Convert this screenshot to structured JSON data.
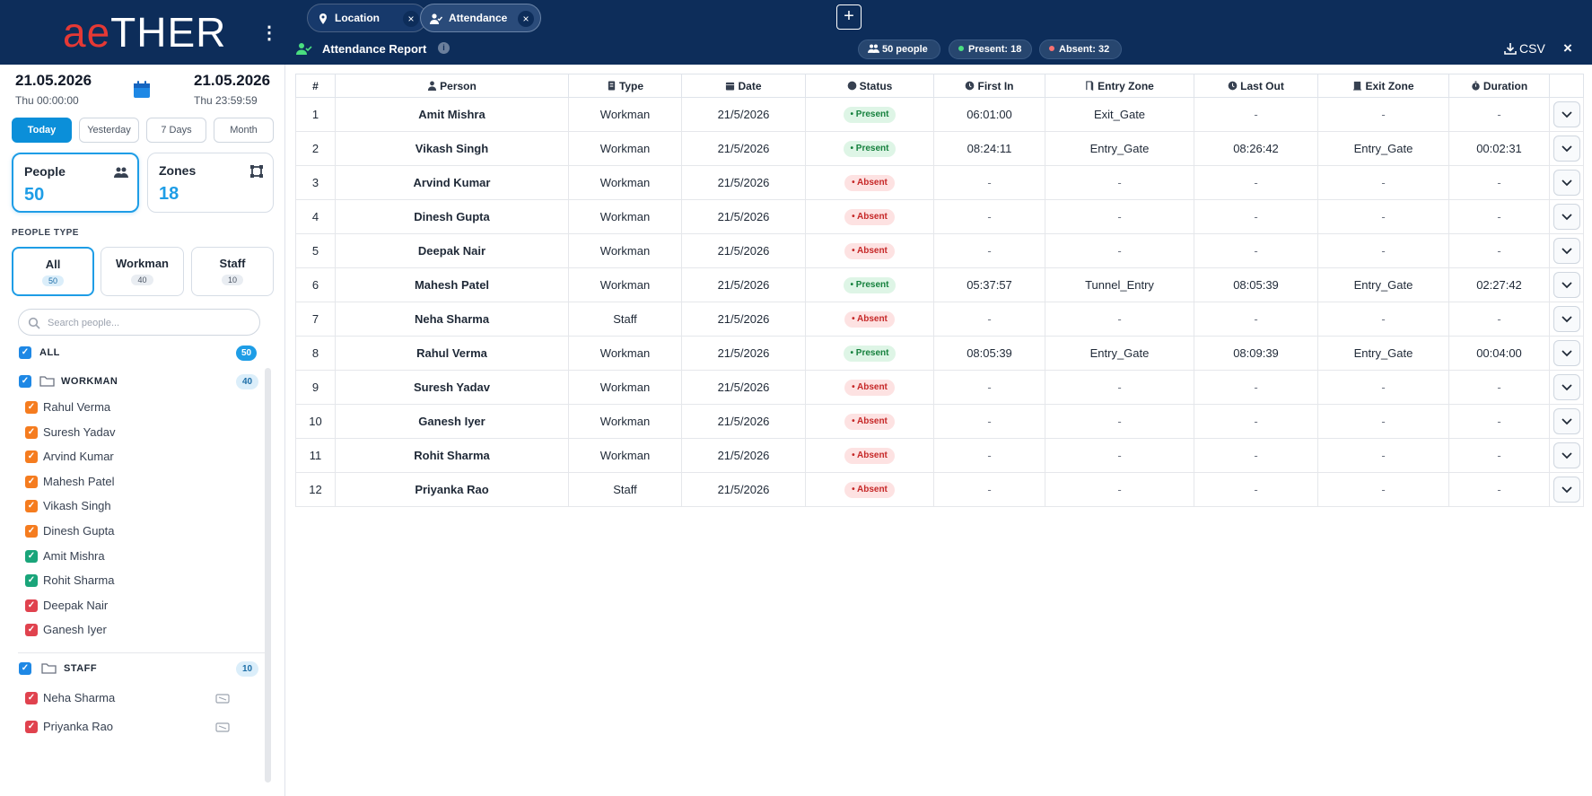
{
  "brand": {
    "logo_ae": "ae",
    "logo_rest": "THER",
    "menu_icon": "kebab-menu-icon"
  },
  "dates": {
    "from": {
      "date": "21.05.2026",
      "time": "Thu 00:00:00"
    },
    "to": {
      "date": "21.05.2026",
      "time": "Thu 23:59:59"
    },
    "calendar_icon": "calendar-icon"
  },
  "ranges": [
    {
      "label": "Today",
      "active": true
    },
    {
      "label": "Yesterday",
      "active": false
    },
    {
      "label": "7 Days",
      "active": false
    },
    {
      "label": "Month",
      "active": false
    }
  ],
  "stats": {
    "people": {
      "label": "People",
      "value": "50",
      "icon": "people-icon"
    },
    "zones": {
      "label": "Zones",
      "value": "18",
      "icon": "zone-icon"
    }
  },
  "people_type": {
    "title": "PEOPLE TYPE",
    "options": [
      {
        "label": "All",
        "count": "50",
        "active": true
      },
      {
        "label": "Workman",
        "count": "40",
        "active": false
      },
      {
        "label": "Staff",
        "count": "10",
        "active": false
      }
    ]
  },
  "search": {
    "placeholder": "Search people..."
  },
  "tree": {
    "all": {
      "label": "ALL",
      "count": "50"
    },
    "workman": {
      "label": "WORKMAN",
      "count": "40",
      "members": [
        {
          "name": "Rahul Verma",
          "color": "orange"
        },
        {
          "name": "Suresh Yadav",
          "color": "orange"
        },
        {
          "name": "Arvind Kumar",
          "color": "orange"
        },
        {
          "name": "Mahesh Patel",
          "color": "orange"
        },
        {
          "name": "Vikash Singh",
          "color": "orange"
        },
        {
          "name": "Dinesh Gupta",
          "color": "orange"
        },
        {
          "name": "Amit Mishra",
          "color": "green"
        },
        {
          "name": "Rohit Sharma",
          "color": "green"
        },
        {
          "name": "Deepak Nair",
          "color": "red"
        },
        {
          "name": "Ganesh Iyer",
          "color": "red"
        }
      ]
    },
    "staff": {
      "label": "STAFF",
      "count": "10",
      "members": [
        {
          "name": "Neha Sharma",
          "color": "red"
        },
        {
          "name": "Priyanka Rao",
          "color": "red"
        }
      ]
    }
  },
  "tabs": [
    {
      "label": "Location",
      "icon": "location-pin-icon",
      "active": false
    },
    {
      "label": "Attendance",
      "icon": "user-check-icon",
      "active": true
    }
  ],
  "report": {
    "title": "Attendance Report",
    "info": "i",
    "pills": {
      "people": "50 people",
      "present": "Present: 18",
      "absent": "Absent: 32"
    },
    "csv_label": "CSV",
    "close": "×"
  },
  "table": {
    "columns": [
      "#",
      "Person",
      "Type",
      "Date",
      "Status",
      "First In",
      "Entry Zone",
      "Last Out",
      "Exit Zone",
      "Duration"
    ],
    "rows": [
      {
        "n": "1",
        "person": "Amit Mishra",
        "type": "Workman",
        "date": "21/5/2026",
        "status": "Present",
        "first_in": "06:01:00",
        "entry_zone": "Exit_Gate",
        "last_out": "-",
        "exit_zone": "-",
        "duration": "-"
      },
      {
        "n": "2",
        "person": "Vikash Singh",
        "type": "Workman",
        "date": "21/5/2026",
        "status": "Present",
        "first_in": "08:24:11",
        "entry_zone": "Entry_Gate",
        "last_out": "08:26:42",
        "exit_zone": "Entry_Gate",
        "duration": "00:02:31"
      },
      {
        "n": "3",
        "person": "Arvind Kumar",
        "type": "Workman",
        "date": "21/5/2026",
        "status": "Absent",
        "first_in": "-",
        "entry_zone": "-",
        "last_out": "-",
        "exit_zone": "-",
        "duration": "-"
      },
      {
        "n": "4",
        "person": "Dinesh Gupta",
        "type": "Workman",
        "date": "21/5/2026",
        "status": "Absent",
        "first_in": "-",
        "entry_zone": "-",
        "last_out": "-",
        "exit_zone": "-",
        "duration": "-"
      },
      {
        "n": "5",
        "person": "Deepak Nair",
        "type": "Workman",
        "date": "21/5/2026",
        "status": "Absent",
        "first_in": "-",
        "entry_zone": "-",
        "last_out": "-",
        "exit_zone": "-",
        "duration": "-"
      },
      {
        "n": "6",
        "person": "Mahesh Patel",
        "type": "Workman",
        "date": "21/5/2026",
        "status": "Present",
        "first_in": "05:37:57",
        "entry_zone": "Tunnel_Entry",
        "last_out": "08:05:39",
        "exit_zone": "Entry_Gate",
        "duration": "02:27:42"
      },
      {
        "n": "7",
        "person": "Neha Sharma",
        "type": "Staff",
        "date": "21/5/2026",
        "status": "Absent",
        "first_in": "-",
        "entry_zone": "-",
        "last_out": "-",
        "exit_zone": "-",
        "duration": "-"
      },
      {
        "n": "8",
        "person": "Rahul Verma",
        "type": "Workman",
        "date": "21/5/2026",
        "status": "Present",
        "first_in": "08:05:39",
        "entry_zone": "Entry_Gate",
        "last_out": "08:09:39",
        "exit_zone": "Entry_Gate",
        "duration": "00:04:00"
      },
      {
        "n": "9",
        "person": "Suresh Yadav",
        "type": "Workman",
        "date": "21/5/2026",
        "status": "Absent",
        "first_in": "-",
        "entry_zone": "-",
        "last_out": "-",
        "exit_zone": "-",
        "duration": "-"
      },
      {
        "n": "10",
        "person": "Ganesh Iyer",
        "type": "Workman",
        "date": "21/5/2026",
        "status": "Absent",
        "first_in": "-",
        "entry_zone": "-",
        "last_out": "-",
        "exit_zone": "-",
        "duration": "-"
      },
      {
        "n": "11",
        "person": "Rohit Sharma",
        "type": "Workman",
        "date": "21/5/2026",
        "status": "Absent",
        "first_in": "-",
        "entry_zone": "-",
        "last_out": "-",
        "exit_zone": "-",
        "duration": "-"
      },
      {
        "n": "12",
        "person": "Priyanka Rao",
        "type": "Staff",
        "date": "21/5/2026",
        "status": "Absent",
        "first_in": "-",
        "entry_zone": "-",
        "last_out": "-",
        "exit_zone": "-",
        "duration": "-"
      }
    ]
  },
  "colors": {
    "navy": "#0d2d5a",
    "accent": "#1e9de6",
    "present": "#15803d",
    "absent": "#c62828",
    "logo_red": "#e53935"
  }
}
